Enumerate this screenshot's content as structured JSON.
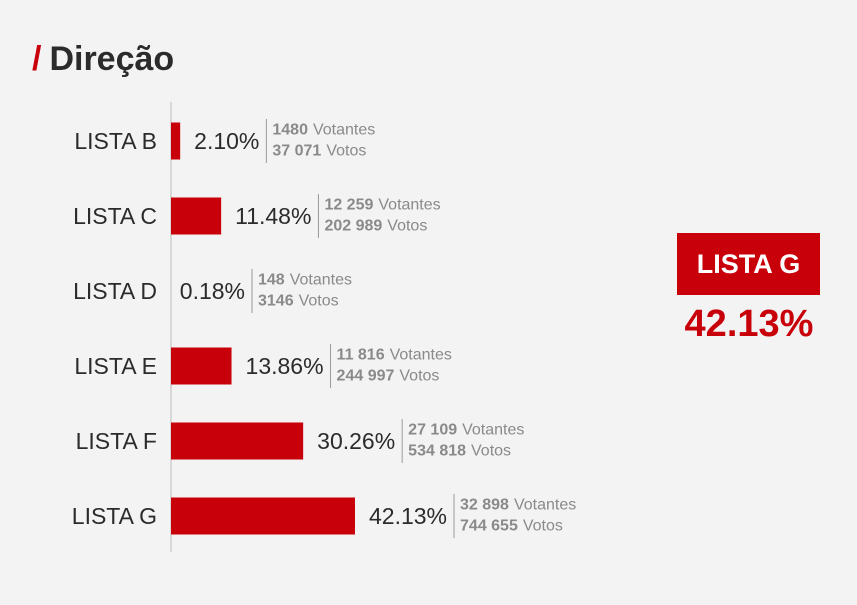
{
  "title": {
    "slash": "/",
    "text": "Direção"
  },
  "winner": {
    "label": "LISTA G",
    "pct": "42.13%"
  },
  "colors": {
    "accent": "#c8000a",
    "background": "#f3f3f3",
    "text": "#2b2b2b",
    "muted": "#8a8a8a"
  },
  "chart_data": {
    "type": "bar",
    "orientation": "horizontal",
    "categories": [
      "LISTA B",
      "LISTA C",
      "LISTA D",
      "LISTA E",
      "LISTA F",
      "LISTA G"
    ],
    "values": [
      2.1,
      11.48,
      0.18,
      13.86,
      30.26,
      42.13
    ],
    "value_labels": [
      "2.10%",
      "11.48%",
      "0.18%",
      "13.86%",
      "30.26%",
      "42.13%"
    ],
    "votantes": [
      "1480",
      "12 259",
      "148",
      "11 816",
      "27 109",
      "32 898"
    ],
    "votos": [
      "37 071",
      "202 989",
      "3146",
      "244 997",
      "534 818",
      "744 655"
    ],
    "votantes_suffix": "Votantes",
    "votos_suffix": "Votos",
    "xlim": [
      0,
      100
    ],
    "grid": false,
    "legend": "none"
  }
}
